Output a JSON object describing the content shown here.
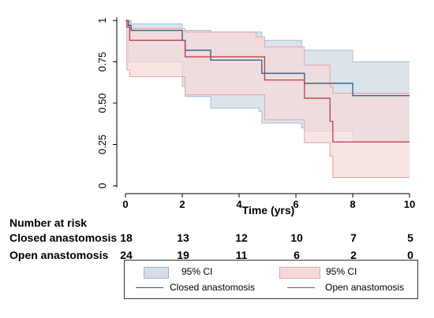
{
  "chart_data": {
    "type": "line",
    "subtype": "kaplan-meier",
    "xlabel": "Time (yrs)",
    "ylabel": "",
    "xlim": [
      0,
      10
    ],
    "ylim": [
      0,
      1
    ],
    "x_ticks": [
      "0",
      "2",
      "4",
      "6",
      "8",
      "10"
    ],
    "y_ticks": [
      "0",
      "0.25",
      "0.50",
      "0.75",
      "1"
    ],
    "grid": false,
    "series": [
      {
        "name": "Closed anastomosis",
        "color": "#2a5c82",
        "ci_color": "#d5dee8",
        "x": [
          0,
          0.1,
          0.2,
          2.0,
          2.1,
          3.0,
          4.7,
          4.8,
          6.2,
          6.3,
          8.0,
          10
        ],
        "y": [
          1.0,
          0.97,
          0.94,
          0.88,
          0.82,
          0.76,
          0.76,
          0.68,
          0.68,
          0.62,
          0.545,
          0.545
        ],
        "ci_upper": [
          1.0,
          1.0,
          0.98,
          0.94,
          0.94,
          0.93,
          0.93,
          0.88,
          0.82,
          0.82,
          0.75,
          0.75
        ],
        "ci_lower": [
          1.0,
          0.75,
          0.75,
          0.6,
          0.54,
          0.47,
          0.45,
          0.38,
          0.35,
          0.33,
          0.27,
          0.27
        ]
      },
      {
        "name": "Open anastomosis",
        "color": "#b8404a",
        "ci_color": "#f6d8d8",
        "x": [
          0,
          0.05,
          0.15,
          2.0,
          2.1,
          4.6,
          4.9,
          6.3,
          7.2,
          7.3,
          10
        ],
        "y": [
          1.0,
          0.96,
          0.88,
          0.88,
          0.78,
          0.78,
          0.64,
          0.53,
          0.39,
          0.265,
          0.265
        ],
        "ci_upper": [
          1.0,
          1.0,
          0.95,
          0.95,
          0.93,
          0.9,
          0.84,
          0.73,
          0.6,
          0.56,
          0.56
        ],
        "ci_lower": [
          1.0,
          0.7,
          0.66,
          0.66,
          0.55,
          0.55,
          0.4,
          0.26,
          0.18,
          0.05,
          0.05
        ]
      }
    ],
    "legend_entries": [
      "95% CI",
      "95% CI",
      "Closed anastomosis",
      "Open anastomosis"
    ],
    "legend_position": "bottom"
  },
  "risk_table": {
    "title": "Number at risk",
    "rows": [
      {
        "label": "Closed anastomosis",
        "values": [
          "18",
          "13",
          "12",
          "10",
          "7",
          "5"
        ]
      },
      {
        "label": "Open anastomosis",
        "values": [
          "24",
          "19",
          "11",
          "6",
          "2",
          "0"
        ]
      }
    ]
  }
}
